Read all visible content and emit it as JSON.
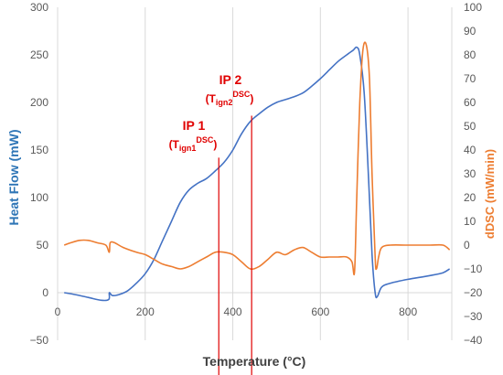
{
  "chart_data": {
    "type": "line",
    "title": "",
    "xlabel": "Temperature (°C)",
    "ylabel": "Heat Flow (mW)",
    "y2label": "dDSC (mW/min)",
    "xlim": [
      0,
      900
    ],
    "ylim": [
      -50,
      300
    ],
    "y2lim": [
      -40,
      100
    ],
    "x_ticks": [
      0,
      200,
      400,
      600,
      800
    ],
    "y_ticks": [
      -50,
      0,
      50,
      100,
      150,
      200,
      250,
      300
    ],
    "y2_ticks": [
      -40,
      -30,
      -20,
      -10,
      0,
      10,
      20,
      30,
      40,
      50,
      60,
      70,
      80,
      90,
      100
    ],
    "grid": "vertical",
    "colors": {
      "heat_flow": "#4472C4",
      "ddsc": "#ED7D31",
      "annotation": "#E00000"
    },
    "series": [
      {
        "name": "Heat Flow (mW)",
        "axis": "left",
        "x": [
          15,
          40,
          70,
          100,
          117,
          118,
          125,
          140,
          160,
          180,
          200,
          220,
          240,
          260,
          280,
          300,
          320,
          340,
          360,
          380,
          400,
          420,
          440,
          460,
          480,
          500,
          520,
          540,
          560,
          580,
          600,
          620,
          640,
          660,
          675,
          683,
          690,
          700,
          710,
          718,
          725,
          730,
          740,
          760,
          800,
          850,
          880,
          895
        ],
        "y": [
          0,
          -2,
          -5,
          -8,
          -7,
          0,
          -3,
          -2,
          2,
          10,
          20,
          35,
          55,
          75,
          95,
          108,
          115,
          120,
          128,
          137,
          150,
          167,
          180,
          188,
          195,
          200,
          203,
          206,
          210,
          217,
          225,
          234,
          243,
          250,
          255,
          258,
          250,
          210,
          120,
          40,
          0,
          -4,
          6,
          10,
          14,
          18,
          21,
          25
        ]
      },
      {
        "name": "dDSC (mW/min)",
        "axis": "right",
        "x": [
          15,
          30,
          50,
          70,
          90,
          110,
          118,
          120,
          130,
          150,
          180,
          200,
          220,
          240,
          260,
          280,
          300,
          320,
          340,
          360,
          380,
          400,
          420,
          440,
          460,
          480,
          500,
          520,
          540,
          560,
          580,
          600,
          620,
          640,
          660,
          672,
          678,
          683,
          690,
          697,
          705,
          712,
          718,
          725,
          728,
          733,
          740,
          760,
          800,
          850,
          880,
          895
        ],
        "y": [
          0,
          1,
          2,
          2,
          1,
          0,
          -3,
          1,
          1,
          -1,
          -3,
          -4,
          -6,
          -8,
          -9,
          -10,
          -9,
          -7,
          -5,
          -3,
          -3,
          -4,
          -7,
          -10,
          -9,
          -6,
          -3,
          -4,
          -2,
          -1,
          -3,
          -5,
          -5,
          -5,
          -5,
          -7,
          -11,
          20,
          60,
          82,
          84,
          70,
          30,
          -5,
          -10,
          -5,
          -1,
          0,
          0,
          0,
          0,
          -2
        ]
      }
    ],
    "annotations": [
      {
        "label": "IP 1",
        "sublabel_main": "(T",
        "sublabel_sub": "ign1",
        "sublabel_sup": "DSC",
        "sublabel_end": ")",
        "arrow_x": 368,
        "arrow_from_y": 142,
        "arrow_to_y": -50
      },
      {
        "label": "IP 2",
        "sublabel_main": "(T",
        "sublabel_sub": "ign2",
        "sublabel_sup": "DSC",
        "sublabel_end": ")",
        "arrow_x": 443,
        "arrow_from_y": 186,
        "arrow_to_y": -50
      }
    ]
  }
}
